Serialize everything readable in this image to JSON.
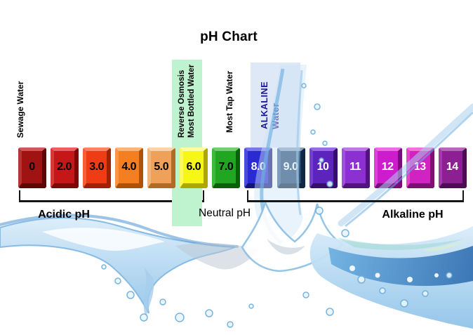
{
  "title": "pH Chart",
  "annotations": {
    "sewage": {
      "label": "Sewage Water"
    },
    "reverse_osmosis": {
      "line1": "Reverse Osmosis",
      "line2": "Most Bottled Water",
      "band_color": "#bff3cf"
    },
    "tap_water": {
      "label": "Most Tap Water"
    },
    "alkaline_water": {
      "line1": "ALKALINE",
      "line2": "Water",
      "band_color": "#dfe8f7",
      "text_color": "#1c1c90"
    }
  },
  "scale": {
    "blocks": [
      {
        "label": "0",
        "face": "#a01313",
        "light": "#d05858",
        "mid": "#b53434",
        "dark": "#5e0505",
        "text": "#000000"
      },
      {
        "label": "2.0",
        "face": "#c51717",
        "light": "#e86060",
        "mid": "#d33a3a",
        "dark": "#7c0808",
        "text": "#000000"
      },
      {
        "label": "3.0",
        "face": "#ef3c15",
        "light": "#ff8560",
        "mid": "#f85f38",
        "dark": "#a32006",
        "text": "#000000"
      },
      {
        "label": "4.0",
        "face": "#f57e20",
        "light": "#ffb473",
        "mid": "#f99548",
        "dark": "#ad5207",
        "text": "#000000"
      },
      {
        "label": "5.0",
        "face": "#f0a159",
        "light": "#ffd2a8",
        "mid": "#f5b577",
        "dark": "#b26b24",
        "text": "#000000"
      },
      {
        "label": "6.0",
        "face": "#f7f716",
        "light": "#ffffa0",
        "mid": "#fafa58",
        "dark": "#ada800",
        "text": "#000000"
      },
      {
        "label": "7.0",
        "face": "#20a620",
        "light": "#70d070",
        "mid": "#3eb83e",
        "dark": "#0b610b",
        "text": "#000000"
      },
      {
        "label": "8.0",
        "face": "#2a2ad2",
        "light": "#7878ec",
        "mid": "#4a4ade",
        "dark": "#14147e",
        "text": "#ffffff"
      },
      {
        "label": "9.0",
        "face": "#24476f",
        "light": "#8aa2bd",
        "mid": "#3f618c",
        "dark": "#122742",
        "text": "#ffffff"
      },
      {
        "label": "10",
        "face": "#5d24bd",
        "light": "#9a6ae4",
        "mid": "#7440cc",
        "dark": "#350f6b",
        "text": "#ffffff"
      },
      {
        "label": "11",
        "face": "#8c30d2",
        "light": "#bd77ea",
        "mid": "#a050dc",
        "dark": "#521380",
        "text": "#ffffff"
      },
      {
        "label": "12",
        "face": "#cd1ccd",
        "light": "#ea6cea",
        "mid": "#da40da",
        "dark": "#780e78",
        "text": "#ffffff"
      },
      {
        "label": "13",
        "face": "#d123c1",
        "light": "#ef72dd",
        "mid": "#de44cc",
        "dark": "#7d1171",
        "text": "#ffffff"
      },
      {
        "label": "14",
        "face": "#8c2093",
        "light": "#bb63c0",
        "mid": "#a03da6",
        "dark": "#4c0d52",
        "text": "#ffffff"
      }
    ]
  },
  "ranges": {
    "acidic": {
      "label": "Acidic pH"
    },
    "neutral": {
      "label": "Neutral pH"
    },
    "alkaline": {
      "label": "Alkaline pH"
    }
  },
  "illustration": {
    "name": "water-splash",
    "colors": [
      "#eaf4fc",
      "#a9d0ec",
      "#6fb0e0",
      "#2e6fb8",
      "#9fd8d0",
      "#b9c6d2"
    ]
  }
}
